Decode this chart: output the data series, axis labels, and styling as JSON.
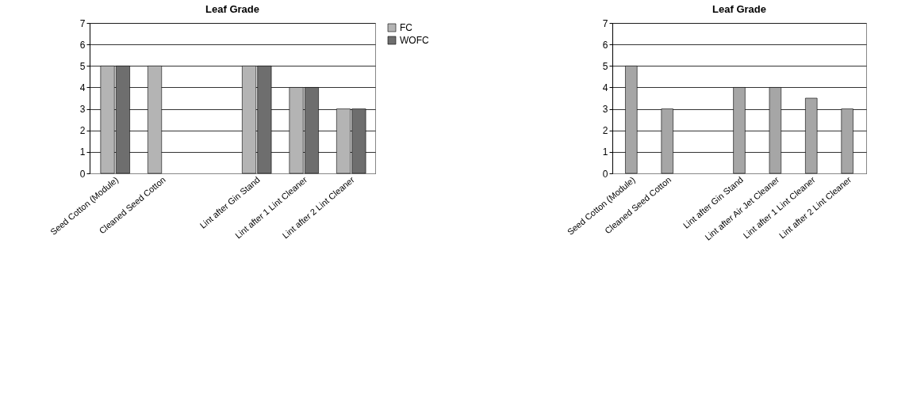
{
  "chart_data": [
    {
      "type": "bar",
      "title": "Leaf Grade",
      "categories": [
        "Seed Cotton (Module)",
        "Cleaned Seed Cotton",
        null,
        "Lint after Gin Stand",
        "Lint after 1 Lint Cleaner",
        "Lint after 2 Lint Cleaner"
      ],
      "series": [
        {
          "name": "FC",
          "color": "#b4b4b4",
          "values": [
            5,
            5,
            null,
            5,
            4,
            3
          ]
        },
        {
          "name": "WOFC",
          "color": "#6e6e6e",
          "values": [
            5,
            null,
            null,
            5,
            4,
            3
          ]
        }
      ],
      "ylim": [
        0,
        7
      ],
      "yticks": [
        0,
        1,
        2,
        3,
        4,
        5,
        6,
        7
      ],
      "grid": "y",
      "legend": "right"
    },
    {
      "type": "bar",
      "title": "Leaf Grade",
      "categories": [
        "Seed Cotton (Module)",
        "Cleaned Seed Cotton",
        null,
        "Lint after Gin Stand",
        "Lint after Air Jet Cleaner",
        "Lint after 1 Lint Cleaner",
        "Lint after 2 Lint Cleaner"
      ],
      "series": [
        {
          "color": "#a6a6a6",
          "values": [
            5,
            3,
            null,
            4,
            4,
            3.5,
            3
          ]
        }
      ],
      "ylim": [
        0,
        7
      ],
      "yticks": [
        0,
        1,
        2,
        3,
        4,
        5,
        6,
        7
      ],
      "grid": "y"
    }
  ]
}
